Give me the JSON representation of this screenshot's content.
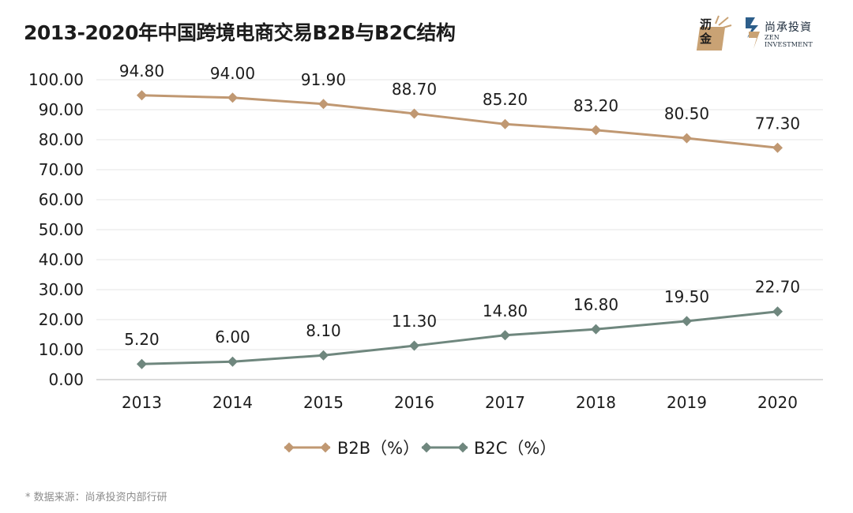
{
  "header": {
    "title": "2013-2020年中国跨境电商交易B2B与B2C结构",
    "logo_left": {
      "line1": "沥",
      "line2": "金"
    },
    "logo_right": {
      "cn": "尚承投資",
      "en": "ZEN INVESTMENT"
    }
  },
  "footer": {
    "source": "* 数据来源：尚承投资内部行研"
  },
  "colors": {
    "b2b": "#c09872",
    "b2c": "#6f877e",
    "grid": "#e6e6e6",
    "axis": "#cfcfcf"
  },
  "chart_data": {
    "type": "line",
    "title": "2013-2020年中国跨境电商交易B2B与B2C结构",
    "categories": [
      "2013",
      "2014",
      "2015",
      "2016",
      "2017",
      "2018",
      "2019",
      "2020"
    ],
    "series": [
      {
        "name": "B2B（%）",
        "values": [
          94.8,
          94.0,
          91.9,
          88.7,
          85.2,
          83.2,
          80.5,
          77.3
        ],
        "labels": [
          "94.80",
          "94.00",
          "91.90",
          "88.70",
          "85.20",
          "83.20",
          "80.50",
          "77.30"
        ]
      },
      {
        "name": "B2C（%）",
        "values": [
          5.2,
          6.0,
          8.1,
          11.3,
          14.8,
          16.8,
          19.5,
          22.7
        ],
        "labels": [
          "5.20",
          "6.00",
          "8.10",
          "11.30",
          "14.80",
          "16.80",
          "19.50",
          "22.70"
        ]
      }
    ],
    "yticks": [
      "0.00",
      "10.00",
      "20.00",
      "30.00",
      "40.00",
      "50.00",
      "60.00",
      "70.00",
      "80.00",
      "90.00",
      "100.00"
    ],
    "ylim": [
      0,
      100
    ],
    "grid": true,
    "legend": "bottom-center",
    "xlabel": "",
    "ylabel": ""
  }
}
